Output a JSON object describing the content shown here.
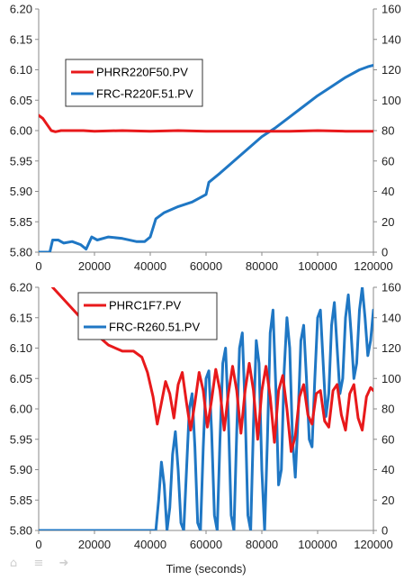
{
  "chart_data": [
    {
      "type": "line",
      "xlim": [
        0,
        120000
      ],
      "x_ticks": [
        "0",
        "20000",
        "40000",
        "60000",
        "80000",
        "100000",
        "120000"
      ],
      "y_left_lim": [
        5.8,
        6.2
      ],
      "y_left_ticks": [
        "5.80",
        "5.85",
        "5.90",
        "5.95",
        "6.00",
        "6.05",
        "6.10",
        "6.15",
        "6.20"
      ],
      "y_right_lim": [
        0,
        160
      ],
      "y_right_ticks": [
        "0",
        "20",
        "40",
        "60",
        "80",
        "100",
        "120",
        "140",
        "160"
      ],
      "legend_position": "upper-left",
      "series": [
        {
          "name": "PHRR220F50.PV",
          "axis": "left",
          "color": "#e8191b",
          "points": [
            [
              0,
              6.025
            ],
            [
              1500,
              6.02
            ],
            [
              3000,
              6.01
            ],
            [
              4500,
              6.0
            ],
            [
              6000,
              5.998
            ],
            [
              8000,
              6.0
            ],
            [
              12000,
              6.0
            ],
            [
              16000,
              6.0
            ],
            [
              20000,
              5.999
            ],
            [
              30000,
              6.0
            ],
            [
              40000,
              5.999
            ],
            [
              50000,
              6.0
            ],
            [
              60000,
              5.999
            ],
            [
              70000,
              5.999
            ],
            [
              80000,
              5.999
            ],
            [
              90000,
              5.999
            ],
            [
              100000,
              6.0
            ],
            [
              110000,
              5.999
            ],
            [
              120000,
              5.999
            ]
          ]
        },
        {
          "name": "FRC-R220F.51.PV",
          "axis": "right",
          "color": "#1f77c4",
          "points": [
            [
              0,
              0
            ],
            [
              4000,
              0
            ],
            [
              5000,
              8
            ],
            [
              7000,
              8
            ],
            [
              9000,
              6
            ],
            [
              12000,
              7
            ],
            [
              15000,
              5
            ],
            [
              17000,
              2
            ],
            [
              19000,
              10
            ],
            [
              21000,
              8
            ],
            [
              25000,
              10
            ],
            [
              30000,
              9
            ],
            [
              35000,
              7
            ],
            [
              38000,
              7
            ],
            [
              40000,
              10
            ],
            [
              42000,
              22
            ],
            [
              45000,
              26
            ],
            [
              50000,
              30
            ],
            [
              55000,
              33
            ],
            [
              60000,
              38
            ],
            [
              61000,
              46
            ],
            [
              65000,
              52
            ],
            [
              70000,
              60
            ],
            [
              75000,
              68
            ],
            [
              80000,
              76
            ],
            [
              85000,
              82
            ],
            [
              90000,
              89
            ],
            [
              95000,
              96
            ],
            [
              100000,
              103
            ],
            [
              105000,
              109
            ],
            [
              110000,
              115
            ],
            [
              115000,
              120
            ],
            [
              118000,
              122
            ],
            [
              120000,
              123
            ]
          ]
        }
      ]
    },
    {
      "type": "line",
      "xlim": [
        0,
        120000
      ],
      "x_ticks": [
        "0",
        "20000",
        "40000",
        "60000",
        "80000",
        "100000",
        "120000"
      ],
      "xlabel": "Time (seconds)",
      "y_left_lim": [
        5.8,
        6.2
      ],
      "y_left_ticks": [
        "5.80",
        "5.85",
        "5.90",
        "5.95",
        "6.00",
        "6.05",
        "6.10",
        "6.15",
        "6.20"
      ],
      "y_right_lim": [
        0,
        160
      ],
      "y_right_ticks": [
        "0",
        "20",
        "40",
        "60",
        "80",
        "100",
        "120",
        "140",
        "160"
      ],
      "legend_position": "upper-left",
      "series": [
        {
          "name": "PHRC1F7.PV",
          "axis": "left",
          "color": "#e8191b",
          "points": [
            [
              5000,
              6.2
            ],
            [
              10000,
              6.175
            ],
            [
              15000,
              6.15
            ],
            [
              20000,
              6.125
            ],
            [
              25000,
              6.105
            ],
            [
              30000,
              6.095
            ],
            [
              34000,
              6.095
            ],
            [
              37000,
              6.085
            ],
            [
              39000,
              6.06
            ],
            [
              41000,
              6.02
            ],
            [
              42500,
              5.975
            ],
            [
              44000,
              6.01
            ],
            [
              45500,
              6.045
            ],
            [
              47000,
              6.025
            ],
            [
              48500,
              5.985
            ],
            [
              50000,
              6.04
            ],
            [
              51500,
              6.06
            ],
            [
              53000,
              6.01
            ],
            [
              54500,
              5.965
            ],
            [
              56000,
              6.01
            ],
            [
              57500,
              6.06
            ],
            [
              59000,
              6.03
            ],
            [
              60500,
              5.97
            ],
            [
              62000,
              6.015
            ],
            [
              63500,
              6.065
            ],
            [
              65000,
              6.03
            ],
            [
              66500,
              5.965
            ],
            [
              68000,
              6.025
            ],
            [
              69500,
              6.07
            ],
            [
              71000,
              6.03
            ],
            [
              72500,
              5.96
            ],
            [
              74000,
              6.03
            ],
            [
              75500,
              6.075
            ],
            [
              77000,
              6.03
            ],
            [
              78500,
              5.95
            ],
            [
              80000,
              6.03
            ],
            [
              81500,
              6.07
            ],
            [
              83000,
              6.02
            ],
            [
              84500,
              5.945
            ],
            [
              86000,
              6.03
            ],
            [
              87500,
              6.055
            ],
            [
              89000,
              6.0
            ],
            [
              90500,
              5.93
            ],
            [
              92000,
              5.955
            ],
            [
              93500,
              6.02
            ],
            [
              95000,
              6.04
            ],
            [
              96500,
              5.99
            ],
            [
              98000,
              5.975
            ],
            [
              99500,
              6.025
            ],
            [
              101000,
              6.03
            ],
            [
              102500,
              5.98
            ],
            [
              104000,
              5.97
            ],
            [
              105500,
              6.03
            ],
            [
              107000,
              6.04
            ],
            [
              108500,
              5.99
            ],
            [
              110000,
              5.965
            ],
            [
              111500,
              6.025
            ],
            [
              113000,
              6.04
            ],
            [
              114500,
              5.985
            ],
            [
              116000,
              5.965
            ],
            [
              117500,
              6.02
            ],
            [
              119000,
              6.035
            ],
            [
              120000,
              6.03
            ]
          ]
        },
        {
          "name": "FRC-R260.51.PV",
          "axis": "right",
          "color": "#1f77c4",
          "points": [
            [
              0,
              0
            ],
            [
              42000,
              0
            ],
            [
              43000,
              20
            ],
            [
              44000,
              45
            ],
            [
              45000,
              30
            ],
            [
              46000,
              0
            ],
            [
              47000,
              15
            ],
            [
              48000,
              50
            ],
            [
              49000,
              65
            ],
            [
              50000,
              40
            ],
            [
              51000,
              5
            ],
            [
              52000,
              0
            ],
            [
              53000,
              40
            ],
            [
              54000,
              80
            ],
            [
              55000,
              90
            ],
            [
              56000,
              55
            ],
            [
              57000,
              5
            ],
            [
              58000,
              0
            ],
            [
              59000,
              55
            ],
            [
              60000,
              100
            ],
            [
              61000,
              105
            ],
            [
              62000,
              65
            ],
            [
              63000,
              10
            ],
            [
              64000,
              0
            ],
            [
              65000,
              60
            ],
            [
              66000,
              110
            ],
            [
              67000,
              120
            ],
            [
              68000,
              75
            ],
            [
              69000,
              10
            ],
            [
              70000,
              0
            ],
            [
              71000,
              65
            ],
            [
              72000,
              120
            ],
            [
              73000,
              130
            ],
            [
              74000,
              80
            ],
            [
              75000,
              10
            ],
            [
              76000,
              0
            ],
            [
              77000,
              70
            ],
            [
              78000,
              125
            ],
            [
              79000,
              110
            ],
            [
              80000,
              40
            ],
            [
              81000,
              0
            ],
            [
              82000,
              60
            ],
            [
              83000,
              130
            ],
            [
              84000,
              145
            ],
            [
              85000,
              95
            ],
            [
              86000,
              30
            ],
            [
              87000,
              40
            ],
            [
              88000,
              105
            ],
            [
              89000,
              140
            ],
            [
              90000,
              120
            ],
            [
              91000,
              60
            ],
            [
              92000,
              35
            ],
            [
              93000,
              75
            ],
            [
              94000,
              125
            ],
            [
              95000,
              135
            ],
            [
              96000,
              100
            ],
            [
              97000,
              60
            ],
            [
              98000,
              55
            ],
            [
              99000,
              100
            ],
            [
              100000,
              140
            ],
            [
              101000,
              145
            ],
            [
              102000,
              110
            ],
            [
              103000,
              75
            ],
            [
              104000,
              90
            ],
            [
              105000,
              135
            ],
            [
              106000,
              150
            ],
            [
              107000,
              120
            ],
            [
              108000,
              90
            ],
            [
              109000,
              100
            ],
            [
              110000,
              140
            ],
            [
              111000,
              155
            ],
            [
              112000,
              130
            ],
            [
              113000,
              100
            ],
            [
              114000,
              110
            ],
            [
              115000,
              145
            ],
            [
              116000,
              160
            ],
            [
              117000,
              140
            ],
            [
              118000,
              115
            ],
            [
              119000,
              125
            ],
            [
              120000,
              145
            ]
          ]
        }
      ]
    }
  ],
  "toolbar": {
    "home_icon": "⌂",
    "menu_icon": "≡",
    "forward_icon": "➜"
  }
}
